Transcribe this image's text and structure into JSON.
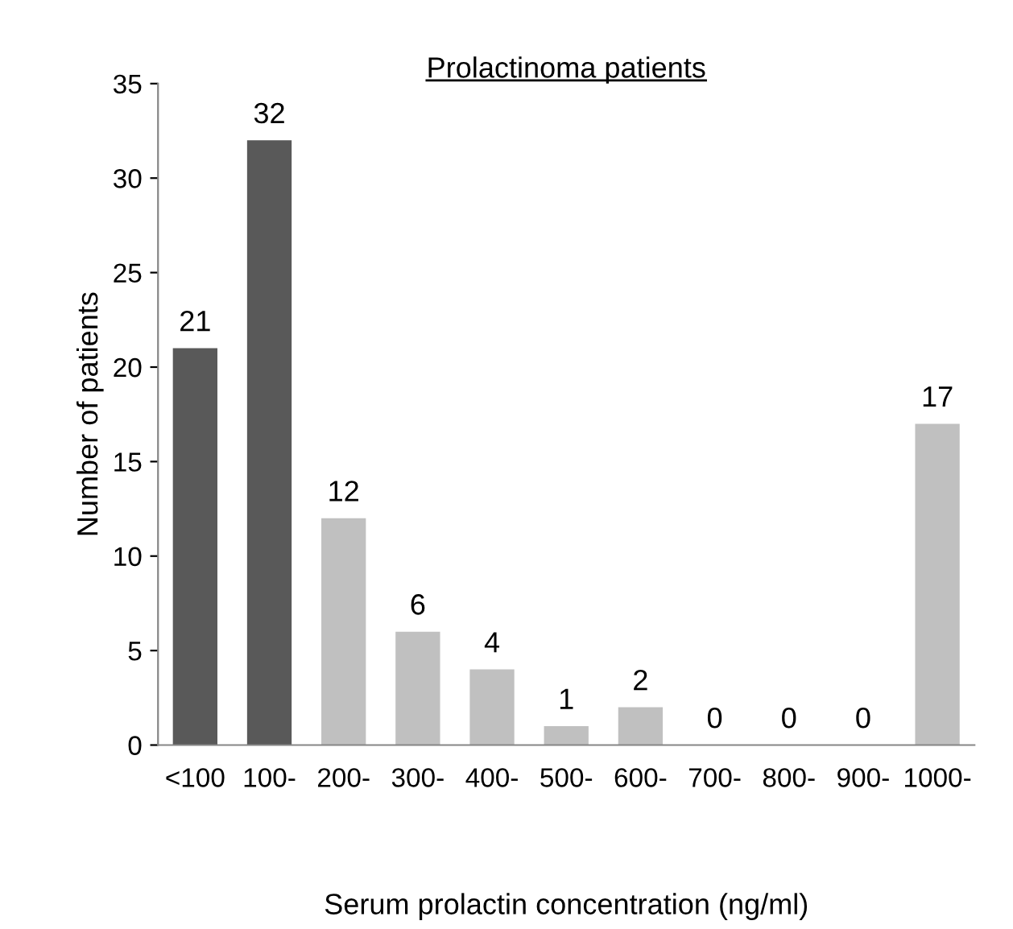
{
  "chart_data": {
    "type": "bar",
    "title": "Prolactinoma patients",
    "xlabel": "Serum prolactin concentration (ng/ml)",
    "ylabel": "Number of patients",
    "categories": [
      "<100",
      "100-",
      "200-",
      "300-",
      "400-",
      "500-",
      "600-",
      "700-",
      "800-",
      "900-",
      "1000-"
    ],
    "values": [
      21,
      32,
      12,
      6,
      4,
      1,
      2,
      0,
      0,
      0,
      17
    ],
    "colors": [
      "#595959",
      "#595959",
      "#c0c0c0",
      "#c0c0c0",
      "#c0c0c0",
      "#c0c0c0",
      "#c0c0c0",
      "#c0c0c0",
      "#c0c0c0",
      "#c0c0c0",
      "#c0c0c0"
    ],
    "ylim": [
      0,
      35
    ],
    "yticks": [
      0,
      5,
      10,
      15,
      20,
      25,
      30,
      35
    ],
    "data_labels": true,
    "grid": false
  }
}
